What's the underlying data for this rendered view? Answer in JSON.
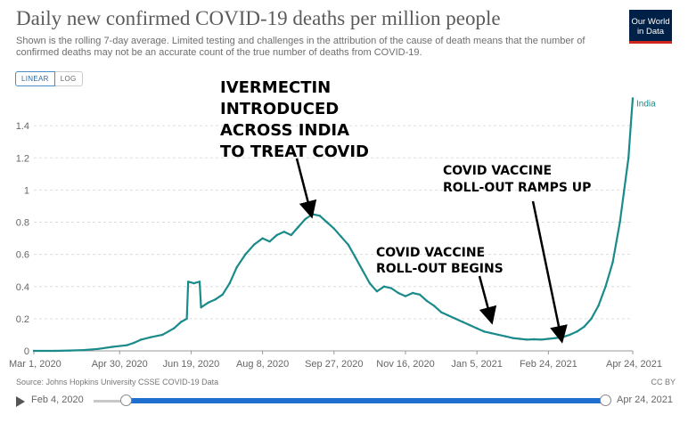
{
  "header": {
    "title": "Daily new confirmed COVID-19 deaths per million people",
    "subtitle": "Shown is the rolling 7-day average. Limited testing and challenges in the attribution of the cause of death means that the number of confirmed deaths may not be an accurate count of the true number of deaths from COVID-19.",
    "logo_line1": "Our World",
    "logo_line2": "in Data"
  },
  "controls": {
    "linear_label": "LINEAR",
    "log_label": "LOG"
  },
  "footer": {
    "source": "Source: Johns Hopkins University CSSE COVID-19 Data",
    "license": "CC BY"
  },
  "timeline": {
    "start_label": "Feb 4, 2020",
    "end_label": "Apr 24, 2021"
  },
  "colors": {
    "line": "#1b8a8a",
    "accent": "#1f6fd0"
  },
  "chart_data": {
    "type": "line",
    "title": "Daily new confirmed COVID-19 deaths per million people",
    "xlabel": "",
    "ylabel": "",
    "ylim": [
      0,
      1.6
    ],
    "yticks": [
      0,
      0.2,
      0.4,
      0.6,
      0.8,
      1,
      1.2,
      1.4
    ],
    "ytick_labels": [
      "0",
      "0.2",
      "0.4",
      "0.6",
      "0.8",
      "1",
      "1.2",
      "1.4"
    ],
    "xrange_days": [
      0,
      419
    ],
    "xticks": [
      {
        "day": 0,
        "label": "Mar 1, 2020"
      },
      {
        "day": 60,
        "label": "Apr 30, 2020"
      },
      {
        "day": 110,
        "label": "Jun 19, 2020"
      },
      {
        "day": 160,
        "label": "Aug 8, 2020"
      },
      {
        "day": 210,
        "label": "Sep 27, 2020"
      },
      {
        "day": 260,
        "label": "Nov 16, 2020"
      },
      {
        "day": 310,
        "label": "Jan 5, 2021"
      },
      {
        "day": 360,
        "label": "Feb 24, 2021"
      },
      {
        "day": 419,
        "label": "Apr 24, 2021"
      }
    ],
    "series": [
      {
        "name": "India",
        "points": [
          [
            0,
            0
          ],
          [
            15,
            0
          ],
          [
            25,
            0.002
          ],
          [
            35,
            0.005
          ],
          [
            45,
            0.012
          ],
          [
            55,
            0.025
          ],
          [
            65,
            0.035
          ],
          [
            70,
            0.05
          ],
          [
            75,
            0.07
          ],
          [
            82,
            0.085
          ],
          [
            90,
            0.1
          ],
          [
            98,
            0.14
          ],
          [
            103,
            0.18
          ],
          [
            107,
            0.2
          ],
          [
            108,
            0.43
          ],
          [
            112,
            0.42
          ],
          [
            116,
            0.43
          ],
          [
            117,
            0.27
          ],
          [
            122,
            0.3
          ],
          [
            127,
            0.32
          ],
          [
            132,
            0.35
          ],
          [
            137,
            0.42
          ],
          [
            142,
            0.52
          ],
          [
            148,
            0.6
          ],
          [
            154,
            0.66
          ],
          [
            160,
            0.7
          ],
          [
            165,
            0.68
          ],
          [
            170,
            0.72
          ],
          [
            175,
            0.74
          ],
          [
            180,
            0.72
          ],
          [
            185,
            0.77
          ],
          [
            190,
            0.82
          ],
          [
            195,
            0.85
          ],
          [
            200,
            0.84
          ],
          [
            205,
            0.8
          ],
          [
            210,
            0.76
          ],
          [
            215,
            0.71
          ],
          [
            220,
            0.66
          ],
          [
            225,
            0.58
          ],
          [
            230,
            0.5
          ],
          [
            235,
            0.42
          ],
          [
            240,
            0.37
          ],
          [
            245,
            0.4
          ],
          [
            250,
            0.39
          ],
          [
            255,
            0.36
          ],
          [
            260,
            0.34
          ],
          [
            265,
            0.36
          ],
          [
            270,
            0.35
          ],
          [
            275,
            0.31
          ],
          [
            280,
            0.28
          ],
          [
            285,
            0.24
          ],
          [
            290,
            0.22
          ],
          [
            295,
            0.2
          ],
          [
            300,
            0.18
          ],
          [
            305,
            0.16
          ],
          [
            310,
            0.14
          ],
          [
            315,
            0.12
          ],
          [
            320,
            0.11
          ],
          [
            325,
            0.1
          ],
          [
            330,
            0.09
          ],
          [
            335,
            0.08
          ],
          [
            340,
            0.075
          ],
          [
            345,
            0.07
          ],
          [
            350,
            0.072
          ],
          [
            355,
            0.07
          ],
          [
            360,
            0.075
          ],
          [
            365,
            0.08
          ],
          [
            370,
            0.085
          ],
          [
            375,
            0.1
          ],
          [
            380,
            0.12
          ],
          [
            385,
            0.15
          ],
          [
            390,
            0.2
          ],
          [
            395,
            0.28
          ],
          [
            400,
            0.4
          ],
          [
            405,
            0.55
          ],
          [
            410,
            0.8
          ],
          [
            413,
            1.0
          ],
          [
            416,
            1.2
          ],
          [
            418,
            1.45
          ],
          [
            419,
            1.57
          ]
        ]
      }
    ],
    "series_label": "India",
    "annotations": [
      {
        "lines": [
          "IVERMECTIN",
          "INTRODUCED",
          "ACROSS INDIA",
          "TO TREAT COVID"
        ],
        "target_day": 195,
        "target_value": 0.85
      },
      {
        "lines": [
          "COVID VACCINE",
          "ROLL-OUT BEGINS"
        ],
        "target_day": 306,
        "target_value": 0.17
      },
      {
        "lines": [
          "COVID VACCINE",
          "ROLL-OUT RAMPS UP"
        ],
        "target_day": 350,
        "target_value": 0.07
      }
    ]
  }
}
